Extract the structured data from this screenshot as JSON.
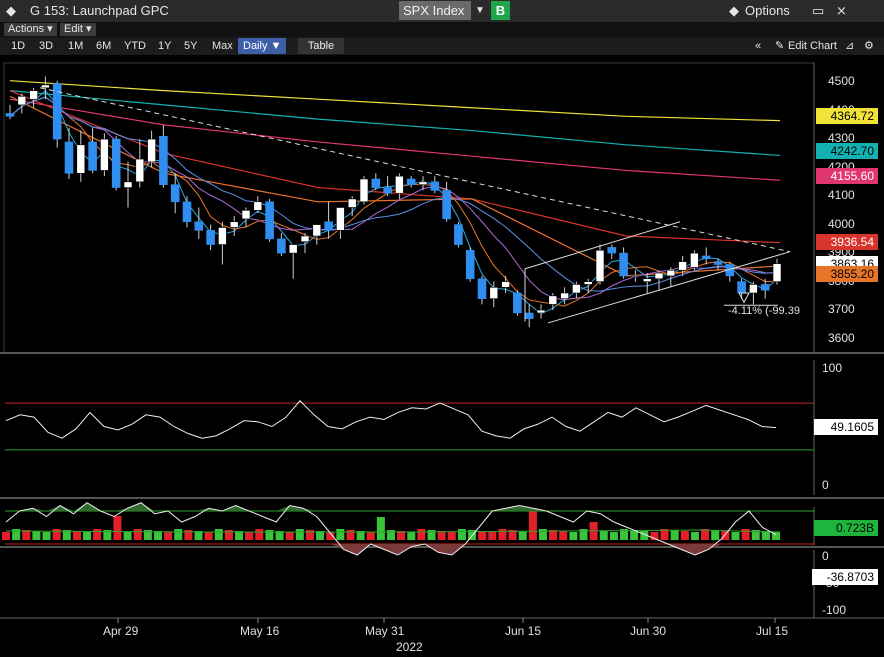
{
  "titlebar": {
    "app_icon": "diamond-icon",
    "title": "G 153: Launchpad GPC",
    "symbol": "SPX Index",
    "security_badge": "B",
    "options_label": "Options",
    "window_icons": [
      "options-diamond-icon",
      "restore-icon",
      "close-icon"
    ]
  },
  "menu": {
    "actions": "Actions",
    "edit": "Edit"
  },
  "ranges": [
    "1D",
    "3D",
    "1M",
    "6M",
    "YTD",
    "1Y",
    "5Y",
    "Max"
  ],
  "period": "Daily",
  "table_label": "Table",
  "edit_chart_label": "Edit Chart",
  "price_axis": [
    "4500",
    "4400",
    "4300",
    "4200",
    "4100",
    "4000",
    "3900",
    "3800",
    "3700",
    "3600"
  ],
  "price_labels": [
    {
      "value": "4364.72",
      "bg": "#f2e23a",
      "fg": "#000000"
    },
    {
      "value": "4242.70",
      "bg": "#13b1b1",
      "fg": "#000000"
    },
    {
      "value": "4155.60",
      "bg": "#e0356e",
      "fg": "#ffffff"
    },
    {
      "value": "3936.54",
      "bg": "#d9342b",
      "fg": "#ffffff"
    },
    {
      "value": "3863.16",
      "bg": "#ffffff",
      "fg": "#000000"
    },
    {
      "value": "3855.20",
      "bg": "#e8742a",
      "fg": "#000000"
    }
  ],
  "annotation": "-4.11% (-99.39",
  "rsi": {
    "axis": [
      "100",
      "0"
    ],
    "value": "49.1605"
  },
  "volume": {
    "value": "0.723B"
  },
  "osc": {
    "axis": [
      "0",
      "-50",
      "-100"
    ],
    "value": "-36.8703"
  },
  "x_axis": [
    "Apr 29",
    "May 16",
    "May 31",
    "Jun 15",
    "Jun 30",
    "Jul 15"
  ],
  "x_year": "2022",
  "chart_data": {
    "type": "candlestick",
    "ylim": [
      3560,
      4560
    ],
    "candles": [
      [
        4390,
        4420,
        4370,
        4380
      ],
      [
        4420,
        4460,
        4390,
        4450
      ],
      [
        4440,
        4480,
        4410,
        4470
      ],
      [
        4480,
        4520,
        4440,
        4490
      ],
      [
        4495,
        4505,
        4270,
        4300
      ],
      [
        4290,
        4340,
        4160,
        4180
      ],
      [
        4180,
        4330,
        4150,
        4280
      ],
      [
        4290,
        4340,
        4180,
        4190
      ],
      [
        4190,
        4320,
        4170,
        4300
      ],
      [
        4300,
        4310,
        4120,
        4130
      ],
      [
        4130,
        4220,
        4060,
        4150
      ],
      [
        4150,
        4300,
        4130,
        4230
      ],
      [
        4220,
        4330,
        4200,
        4300
      ],
      [
        4310,
        4350,
        4130,
        4140
      ],
      [
        4140,
        4180,
        4040,
        4080
      ],
      [
        4080,
        4100,
        3990,
        4010
      ],
      [
        4010,
        4060,
        3950,
        3980
      ],
      [
        3980,
        4000,
        3910,
        3930
      ],
      [
        3930,
        4010,
        3860,
        3990
      ],
      [
        3990,
        4030,
        3960,
        4010
      ],
      [
        4020,
        4060,
        3990,
        4050
      ],
      [
        4050,
        4100,
        4040,
        4080
      ],
      [
        4080,
        4090,
        3940,
        3950
      ],
      [
        3950,
        3970,
        3890,
        3900
      ],
      [
        3900,
        3930,
        3810,
        3930
      ],
      [
        3940,
        3970,
        3900,
        3960
      ],
      [
        3960,
        4000,
        3930,
        4000
      ],
      [
        4010,
        4080,
        3950,
        3980
      ],
      [
        3980,
        4060,
        3950,
        4060
      ],
      [
        4060,
        4100,
        4030,
        4090
      ],
      [
        4080,
        4170,
        4070,
        4160
      ],
      [
        4160,
        4180,
        4120,
        4130
      ],
      [
        4130,
        4170,
        4100,
        4110
      ],
      [
        4110,
        4180,
        4090,
        4170
      ],
      [
        4160,
        4170,
        4130,
        4140
      ],
      [
        4140,
        4170,
        4120,
        4150
      ],
      [
        4150,
        4170,
        4110,
        4120
      ],
      [
        4120,
        4150,
        4010,
        4020
      ],
      [
        4000,
        4010,
        3920,
        3930
      ],
      [
        3910,
        3920,
        3800,
        3810
      ],
      [
        3810,
        3820,
        3720,
        3740
      ],
      [
        3740,
        3800,
        3710,
        3780
      ],
      [
        3780,
        3820,
        3760,
        3800
      ],
      [
        3760,
        3770,
        3680,
        3690
      ],
      [
        3690,
        3720,
        3640,
        3670
      ],
      [
        3690,
        3720,
        3670,
        3700
      ],
      [
        3720,
        3760,
        3700,
        3750
      ],
      [
        3740,
        3780,
        3720,
        3760
      ],
      [
        3760,
        3800,
        3740,
        3790
      ],
      [
        3790,
        3810,
        3760,
        3800
      ],
      [
        3800,
        3930,
        3790,
        3910
      ],
      [
        3920,
        3930,
        3880,
        3900
      ],
      [
        3900,
        3920,
        3810,
        3820
      ],
      [
        3820,
        3840,
        3800,
        3820
      ],
      [
        3800,
        3830,
        3760,
        3810
      ],
      [
        3810,
        3840,
        3770,
        3830
      ],
      [
        3820,
        3850,
        3780,
        3840
      ],
      [
        3840,
        3890,
        3820,
        3870
      ],
      [
        3850,
        3910,
        3840,
        3900
      ],
      [
        3890,
        3920,
        3860,
        3880
      ],
      [
        3870,
        3880,
        3840,
        3860
      ],
      [
        3860,
        3870,
        3800,
        3820
      ],
      [
        3800,
        3810,
        3740,
        3760
      ],
      [
        3760,
        3800,
        3720,
        3790
      ],
      [
        3790,
        3810,
        3740,
        3770
      ],
      [
        3800,
        3880,
        3790,
        3863
      ]
    ],
    "ma_lines": [
      {
        "color": "#f2e23a",
        "values": [
          4505,
          4470,
          4440,
          4410,
          4380,
          4364.72
        ]
      },
      {
        "color": "#13b1b1",
        "values": [
          4470,
          4420,
          4370,
          4330,
          4280,
          4242.7
        ]
      },
      {
        "color": "#e0356e",
        "values": [
          4440,
          4350,
          4290,
          4240,
          4190,
          4155.6
        ]
      },
      {
        "color": "#d9342b",
        "values": [
          4470,
          4250,
          4130,
          4090,
          3960,
          3936.54
        ]
      },
      {
        "color": "#e8742a",
        "values": [
          4450,
          4180,
          4080,
          4090,
          3820,
          3855.2
        ]
      }
    ],
    "rsi": [
      55,
      60,
      58,
      45,
      40,
      48,
      62,
      50,
      47,
      52,
      60,
      58,
      50,
      44,
      40,
      42,
      48,
      55,
      54,
      50,
      58,
      72,
      60,
      50,
      48,
      54,
      58,
      56,
      62,
      66,
      65,
      70,
      65,
      60,
      46,
      42,
      40,
      48,
      52,
      58,
      50,
      46,
      54,
      62,
      58,
      66,
      60,
      54,
      58,
      63,
      68,
      64,
      60,
      56,
      50,
      49
    ],
    "volume_colors": [
      "r",
      "g",
      "r",
      "g",
      "g",
      "r",
      "g",
      "r",
      "g",
      "r",
      "g",
      "r",
      "g",
      "r",
      "g",
      "g",
      "r",
      "g",
      "r",
      "g",
      "r",
      "g",
      "r",
      "g",
      "r",
      "r",
      "g",
      "g",
      "r",
      "g",
      "r",
      "g",
      "r",
      "g",
      "r",
      "g",
      "r",
      "g",
      "g",
      "r",
      "g",
      "r",
      "g",
      "r",
      "r",
      "g",
      "g",
      "r",
      "r",
      "r",
      "r",
      "g",
      "r",
      "g",
      "r",
      "r",
      "g",
      "g",
      "r",
      "g",
      "g",
      "g",
      "g",
      "g",
      "r",
      "r",
      "g",
      "r",
      "g",
      "r",
      "g",
      "r",
      "g",
      "r",
      "g",
      "g",
      "g"
    ],
    "osc": [
      -60,
      -80,
      -85,
      -70,
      -90,
      -75,
      -95,
      -80,
      -70,
      -85,
      -95,
      -75,
      -80,
      -60,
      -70,
      -85,
      -80,
      -90,
      -80,
      -70,
      -60,
      -90,
      -85,
      -70,
      -40,
      -10,
      0,
      -20,
      -10,
      0,
      -15,
      -20,
      -5,
      0,
      -20,
      -50,
      -80,
      -85,
      -90,
      -85,
      -80,
      -70,
      -60,
      -80,
      -75,
      -60,
      -50,
      -40,
      -30,
      -20,
      -10,
      0,
      -10,
      -30,
      -60,
      -80,
      -50,
      -36.87
    ]
  }
}
